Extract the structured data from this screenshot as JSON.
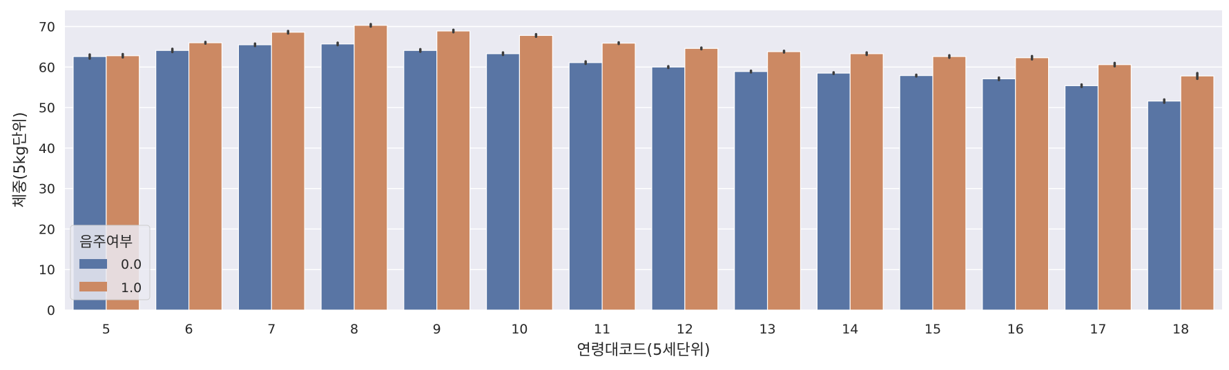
{
  "chart_data": {
    "type": "bar",
    "xlabel": "연령대코드(5세단위)",
    "ylabel": "체중(5kg단위)",
    "categories": [
      "5",
      "6",
      "7",
      "8",
      "9",
      "10",
      "11",
      "12",
      "13",
      "14",
      "15",
      "16",
      "17",
      "18"
    ],
    "ylim": [
      0,
      74
    ],
    "yticks": [
      0,
      10,
      20,
      30,
      40,
      50,
      60,
      70
    ],
    "grid": true,
    "legend": {
      "title": "음주여부",
      "placement": "lower-left"
    },
    "series": [
      {
        "name": "0.0",
        "color": "#5975a4",
        "values": [
          62.6,
          64.1,
          65.5,
          65.7,
          64.1,
          63.3,
          61.1,
          60.0,
          58.9,
          58.5,
          57.9,
          57.1,
          55.4,
          51.6
        ],
        "err": [
          0.5,
          0.4,
          0.3,
          0.3,
          0.3,
          0.3,
          0.3,
          0.2,
          0.2,
          0.2,
          0.2,
          0.3,
          0.3,
          0.4
        ]
      },
      {
        "name": "1.0",
        "color": "#cc8963",
        "values": [
          62.8,
          66.0,
          68.6,
          70.3,
          68.9,
          67.8,
          65.9,
          64.6,
          63.8,
          63.3,
          62.6,
          62.3,
          60.6,
          57.8
        ],
        "err": [
          0.4,
          0.2,
          0.3,
          0.3,
          0.3,
          0.3,
          0.2,
          0.2,
          0.2,
          0.3,
          0.3,
          0.4,
          0.4,
          0.7
        ]
      }
    ]
  }
}
